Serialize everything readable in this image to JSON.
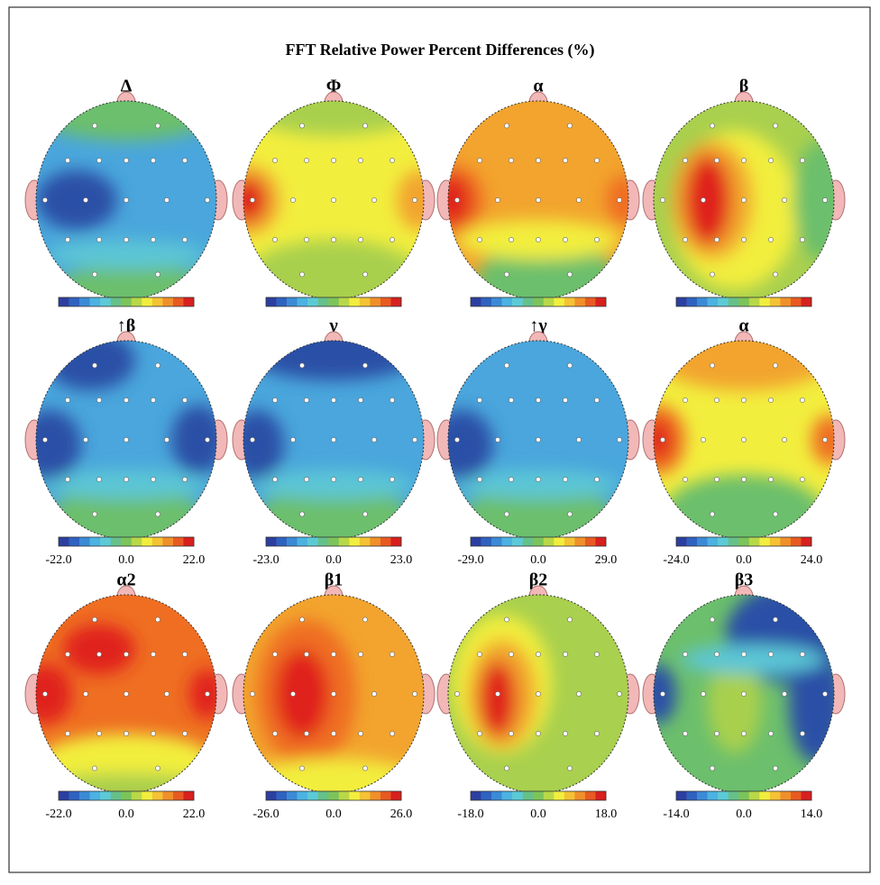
{
  "title": "FFT Relative Power Percent Differences (%)",
  "panels": [
    {
      "label": "Δ"
    },
    {
      "label": "Φ"
    },
    {
      "label": "α"
    },
    {
      "label": "β"
    },
    {
      "label": "↑β",
      "scale": {
        "min": "-22.0",
        "mid": "0.0",
        "max": "22.0"
      }
    },
    {
      "label": "γ",
      "scale": {
        "min": "-23.0",
        "mid": "0.0",
        "max": "23.0"
      }
    },
    {
      "label": "↑γ",
      "scale": {
        "min": "-29.0",
        "mid": "0.0",
        "max": "29.0"
      }
    },
    {
      "label": "α",
      "scale": {
        "min": "-24.0",
        "mid": "0.0",
        "max": "24.0"
      }
    },
    {
      "label": "α2",
      "scale": {
        "min": "-22.0",
        "mid": "0.0",
        "max": "22.0"
      }
    },
    {
      "label": "β1",
      "scale": {
        "min": "-26.0",
        "mid": "0.0",
        "max": "26.0"
      }
    },
    {
      "label": "β2",
      "scale": {
        "min": "-18.0",
        "mid": "0.0",
        "max": "18.0"
      }
    },
    {
      "label": "β3",
      "scale": {
        "min": "-14.0",
        "mid": "0.0",
        "max": "14.0"
      }
    }
  ]
}
